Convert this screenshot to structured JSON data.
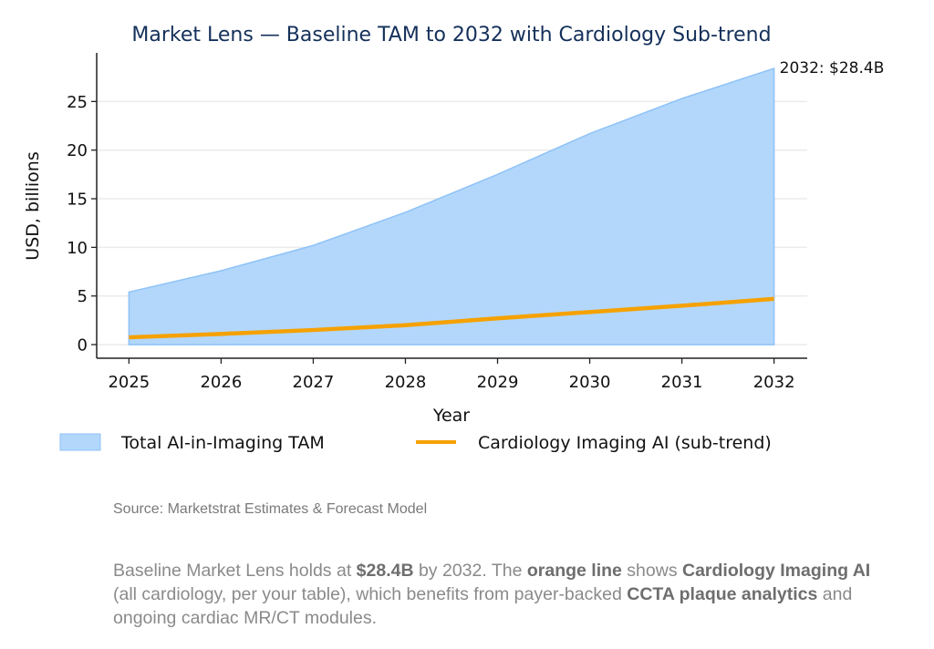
{
  "chart_data": {
    "type": "area",
    "title": "Market Lens — Baseline TAM to 2032 with Cardiology Sub-trend",
    "xlabel": "Year",
    "ylabel": "USD, billions",
    "x": [
      2025,
      2026,
      2027,
      2028,
      2029,
      2030,
      2031,
      2032
    ],
    "xlim": [
      2024.65,
      2032.36
    ],
    "ylim": [
      -1.4,
      30
    ],
    "yticks": [
      0,
      5,
      10,
      15,
      20,
      25
    ],
    "xticks": [
      2025,
      2026,
      2027,
      2028,
      2029,
      2030,
      2031,
      2032
    ],
    "grid": "horizontal",
    "series": [
      {
        "name": "Total AI-in-Imaging TAM",
        "kind": "area",
        "color": "#b3d7fb",
        "edge": "#8ec2f7",
        "values": [
          5.4,
          7.6,
          10.2,
          13.6,
          17.5,
          21.7,
          25.3,
          28.4
        ]
      },
      {
        "name": "Cardiology Imaging AI (sub-trend)",
        "kind": "line",
        "color": "#f5a100",
        "values": [
          0.75,
          1.1,
          1.5,
          2.0,
          2.7,
          3.35,
          4.0,
          4.7
        ]
      }
    ],
    "annotation": {
      "text": "2032: $28.4B",
      "x": 2032,
      "y": 28.4
    },
    "legend": "bottom"
  },
  "source": "Source: Marketstrat Estimates & Forecast Model",
  "caption": {
    "p1": "Baseline Market Lens holds at ",
    "b1": "$28.4B",
    "p2": " by 2032. The ",
    "b2": "orange line",
    "p3": " shows ",
    "b3": "Cardiology Imaging AI",
    "p4": " (all cardiology, per your table), which benefits from payer-backed ",
    "b4": "CCTA plaque analytics",
    "p5": " and ongoing cardiac MR/CT modules."
  }
}
